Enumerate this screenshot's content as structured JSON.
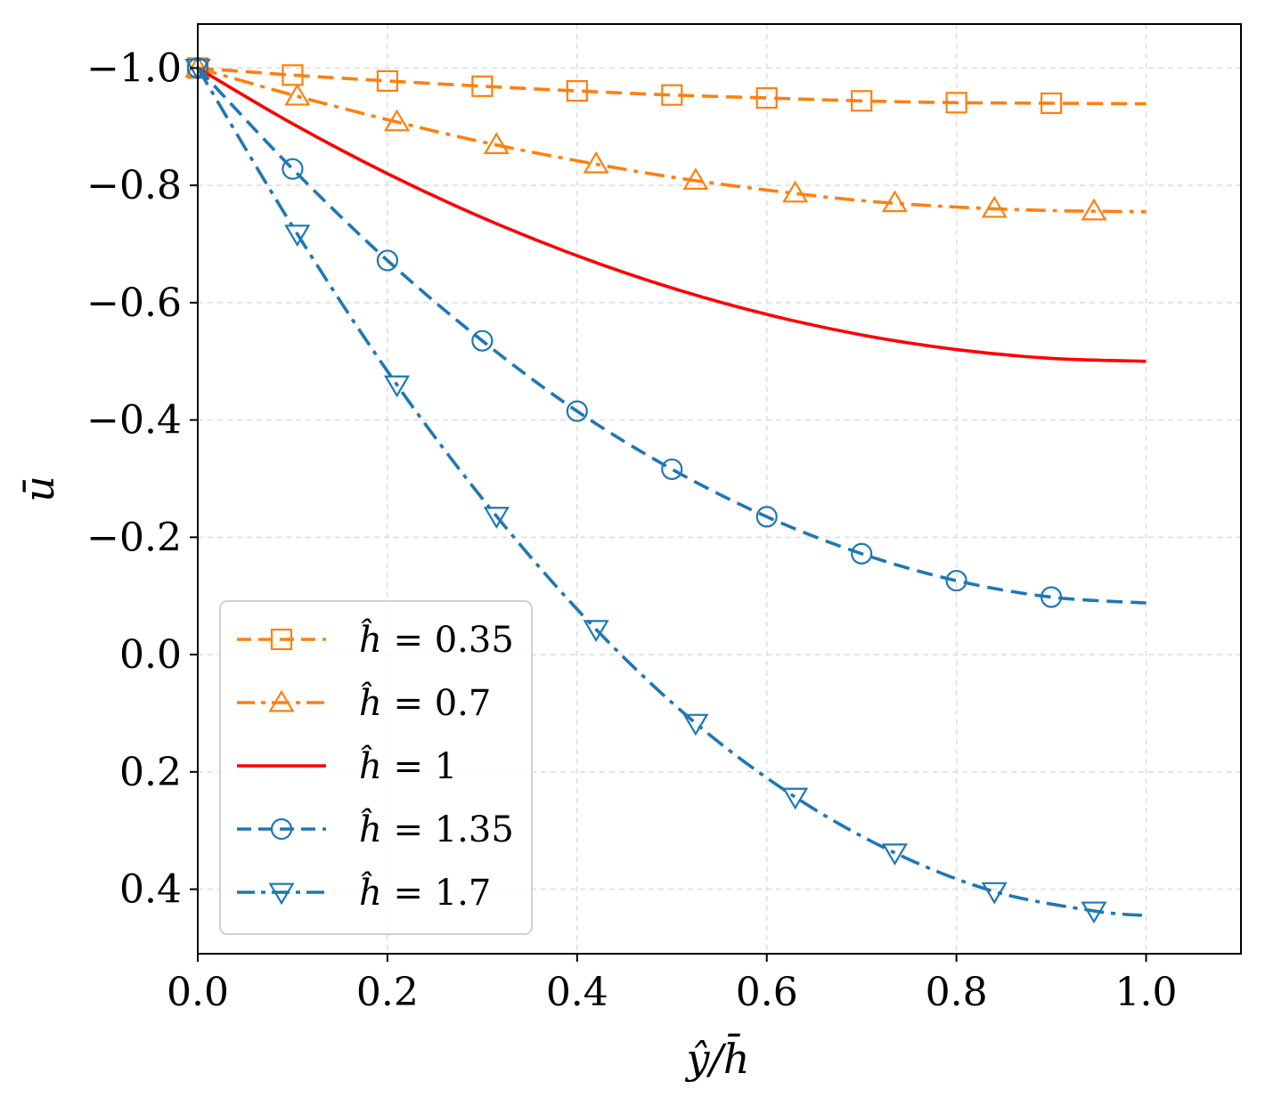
{
  "chart_data": {
    "type": "line",
    "title": "",
    "xlabel": "ŷ/h̄",
    "ylabel": "ū",
    "xlim": [
      0.0,
      1.1
    ],
    "ylim": [
      -1.075,
      0.51
    ],
    "y_axis_inverted": true,
    "grid": true,
    "legend_position": "lower-left",
    "x_ticks": [
      0.0,
      0.2,
      0.4,
      0.6,
      0.8,
      1.0
    ],
    "x_tick_labels": [
      "0.0",
      "0.2",
      "0.4",
      "0.6",
      "0.8",
      "1.0"
    ],
    "y_ticks": [
      -1.0,
      -0.8,
      -0.6,
      -0.4,
      -0.2,
      0.0,
      0.2,
      0.4
    ],
    "y_tick_labels": [
      "−1.0",
      "−0.8",
      "−0.6",
      "−0.4",
      "−0.2",
      "0.0",
      "0.2",
      "0.4"
    ],
    "series": [
      {
        "name": "ĥ = 0.35",
        "symbol": "ĥ",
        "eq": " = 0.35",
        "color": "#ff7f0e",
        "linestyle": "dashed",
        "marker": "square",
        "x": [
          0.0,
          0.1,
          0.2,
          0.3,
          0.4,
          0.5,
          0.6,
          0.7,
          0.8,
          0.9,
          1.0
        ],
        "values": [
          -1.0,
          -0.988,
          -0.978,
          -0.969,
          -0.961,
          -0.954,
          -0.949,
          -0.944,
          -0.941,
          -0.94,
          -0.939
        ],
        "marker_x": [
          0.0,
          0.1,
          0.2,
          0.3,
          0.4,
          0.5,
          0.6,
          0.7,
          0.8,
          0.9
        ]
      },
      {
        "name": "ĥ = 0.7",
        "symbol": "ĥ",
        "eq": " = 0.7",
        "color": "#ff7f0e",
        "linestyle": "dashdot",
        "marker": "triangle-up",
        "x": [
          0.0,
          0.1,
          0.2,
          0.3,
          0.4,
          0.5,
          0.6,
          0.7,
          0.8,
          0.9,
          1.0
        ],
        "values": [
          -1.0,
          -0.954,
          -0.912,
          -0.874,
          -0.842,
          -0.814,
          -0.792,
          -0.774,
          -0.763,
          -0.757,
          -0.755
        ],
        "marker_x": [
          0.0,
          0.105,
          0.21,
          0.315,
          0.42,
          0.525,
          0.63,
          0.735,
          0.84,
          0.945
        ]
      },
      {
        "name": "ĥ = 1",
        "symbol": "ĥ",
        "eq": " = 1",
        "color": "#ff0000",
        "linestyle": "solid",
        "marker": "none",
        "x": [
          0.0,
          0.1,
          0.2,
          0.3,
          0.4,
          0.5,
          0.6,
          0.7,
          0.8,
          0.9,
          1.0
        ],
        "values": [
          -1.0,
          -0.905,
          -0.82,
          -0.745,
          -0.68,
          -0.625,
          -0.58,
          -0.545,
          -0.52,
          -0.505,
          -0.5
        ],
        "marker_x": []
      },
      {
        "name": "ĥ = 1.35",
        "symbol": "ĥ",
        "eq": " = 1.35",
        "color": "#1f77b4",
        "linestyle": "dashed",
        "marker": "circle",
        "x": [
          0.0,
          0.1,
          0.2,
          0.3,
          0.4,
          0.5,
          0.6,
          0.7,
          0.8,
          0.9,
          1.0
        ],
        "values": [
          -1.0,
          -0.828,
          -0.672,
          -0.535,
          -0.415,
          -0.316,
          -0.235,
          -0.172,
          -0.126,
          -0.098,
          -0.088
        ],
        "marker_x": [
          0.0,
          0.1,
          0.2,
          0.3,
          0.4,
          0.5,
          0.6,
          0.7,
          0.8,
          0.9
        ]
      },
      {
        "name": "ĥ = 1.7",
        "symbol": "ĥ",
        "eq": " = 1.7",
        "color": "#1f77b4",
        "linestyle": "dashdot",
        "marker": "triangle-down",
        "x": [
          0.0,
          0.105,
          0.21,
          0.315,
          0.42,
          0.525,
          0.63,
          0.735,
          0.84,
          0.945,
          1.0
        ],
        "values": [
          -1.0,
          -0.717,
          -0.46,
          -0.236,
          -0.043,
          0.117,
          0.243,
          0.338,
          0.404,
          0.437,
          0.445
        ],
        "marker_x": [
          0.0,
          0.105,
          0.21,
          0.315,
          0.42,
          0.525,
          0.63,
          0.735,
          0.84,
          0.945
        ]
      }
    ]
  }
}
